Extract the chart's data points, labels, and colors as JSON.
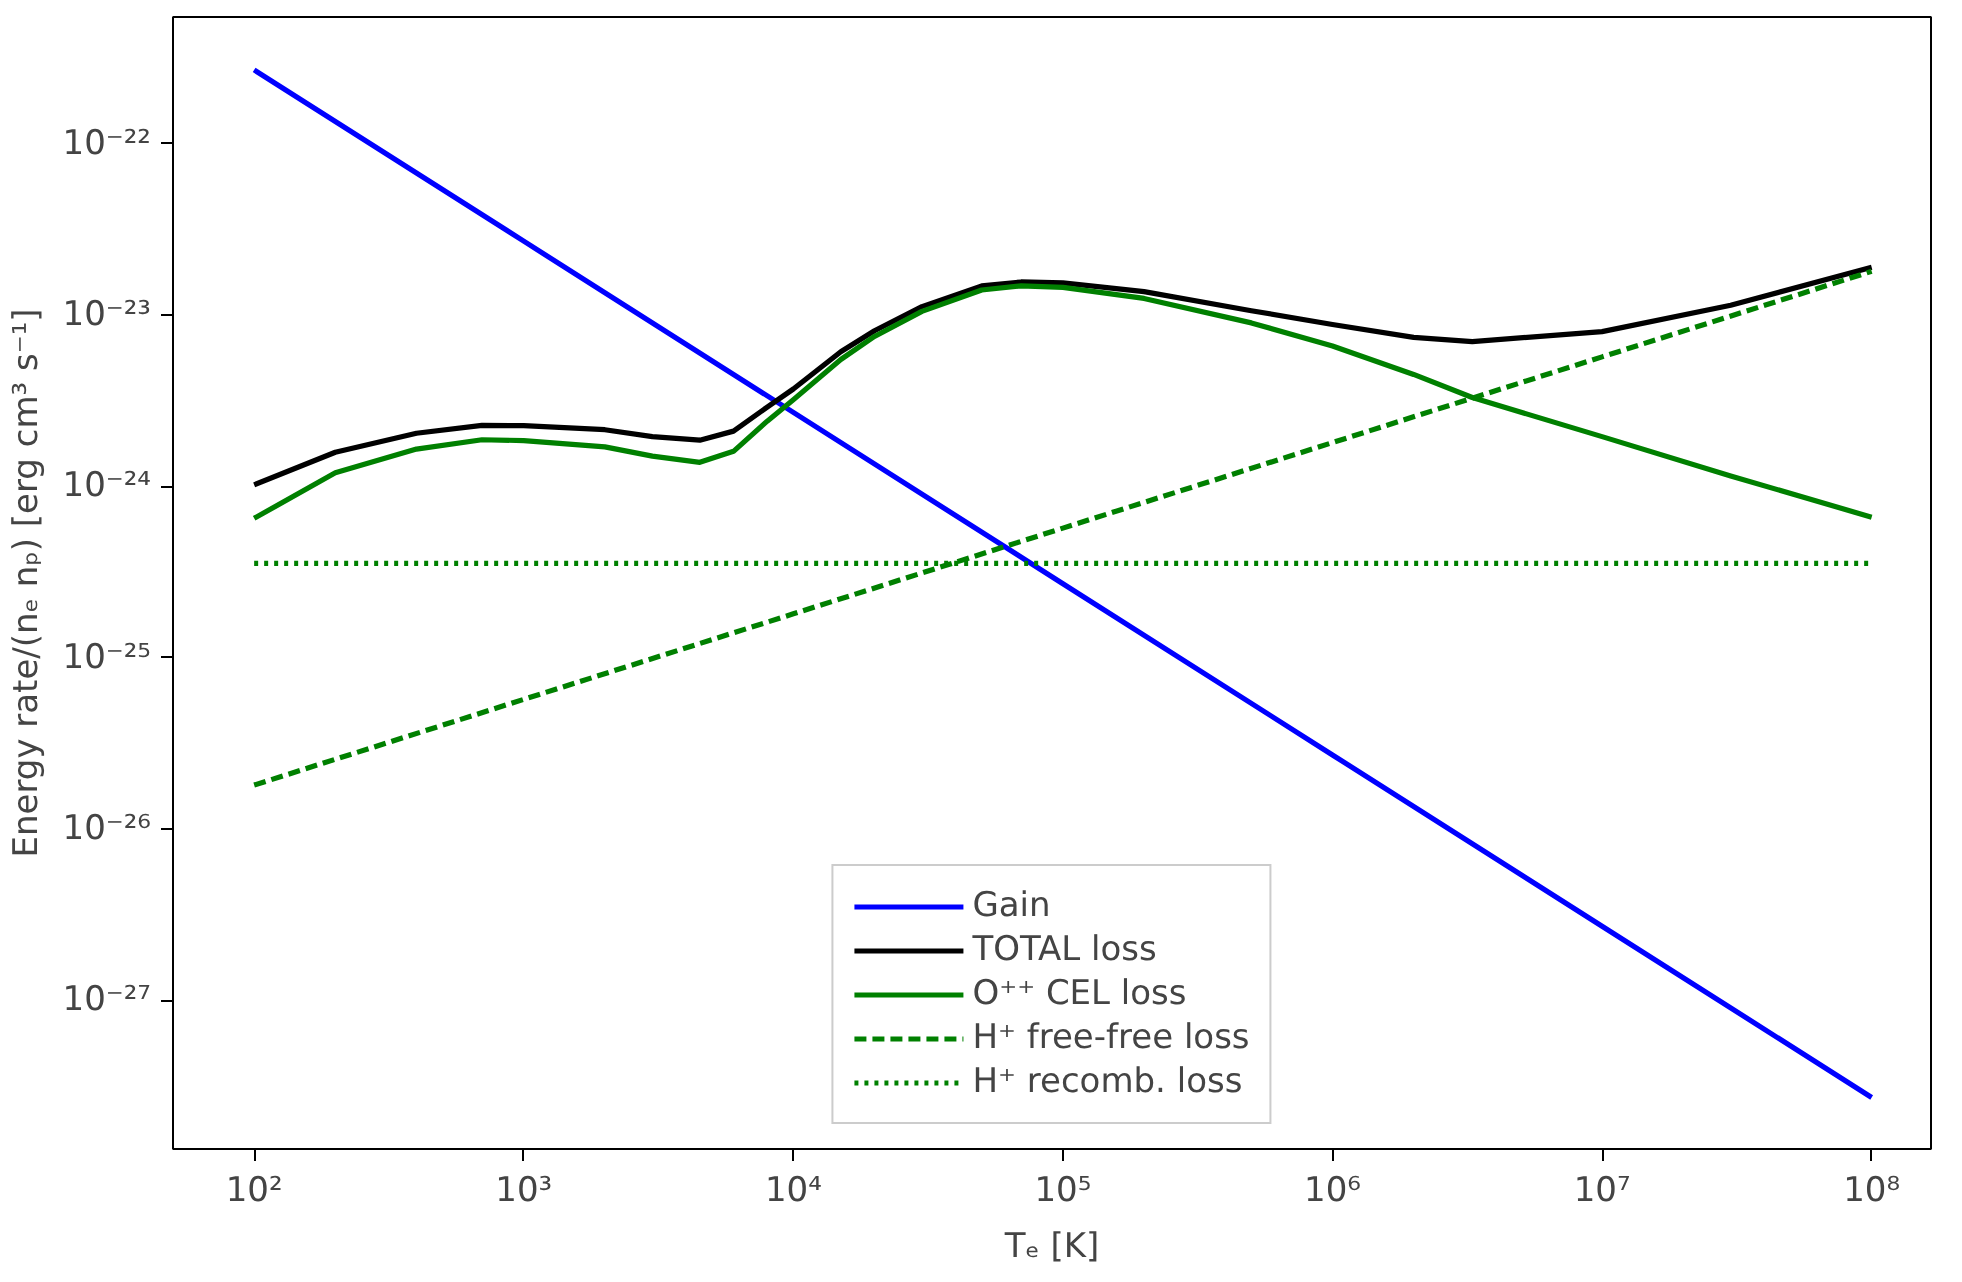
{
  "chart_data": {
    "type": "line",
    "xlabel": "Tₑ [K]",
    "ylabel": "Energy rate/(nₑ nₚ) [erg cm³ s⁻¹]",
    "log": "xy",
    "grid": false,
    "legend": "bottom",
    "line_style": "solid",
    "marker": "none",
    "xlim": [
      50,
      166000000
    ],
    "ylim": [
      1.35e-28,
      5.5e-22
    ],
    "xticks": [
      {
        "value": 100,
        "label": "10²"
      },
      {
        "value": 1000,
        "label": "10³"
      },
      {
        "value": 10000,
        "label": "10⁴"
      },
      {
        "value": 100000,
        "label": "10⁵"
      },
      {
        "value": 1000000,
        "label": "10⁶"
      },
      {
        "value": 10000000,
        "label": "10⁷"
      },
      {
        "value": 100000000,
        "label": "10⁸"
      }
    ],
    "yticks": [
      {
        "value": 1e-27,
        "label": "10⁻²⁷"
      },
      {
        "value": 1e-26,
        "label": "10⁻²⁶"
      },
      {
        "value": 1e-25,
        "label": "10⁻²⁵"
      },
      {
        "value": 1e-24,
        "label": "10⁻²⁴"
      },
      {
        "value": 1e-23,
        "label": "10⁻²³"
      },
      {
        "value": 1e-22,
        "label": "10⁻²²"
      }
    ],
    "x": [
      100,
      200,
      400,
      700,
      1000,
      2000,
      3000,
      4500,
      6000,
      8000,
      10000,
      15000,
      20000,
      30000,
      50000,
      70000,
      100000,
      200000,
      500000,
      1000000,
      2000000,
      3300000,
      10000000,
      30000000,
      100000000
    ],
    "series": [
      {
        "name": "Gain",
        "color": "#0000ff",
        "x": [
          100,
          1000,
          10000,
          100000,
          1000000,
          10000000,
          100000000
        ],
        "values": [
          2.7e-22,
          2.7e-23,
          2.7e-24,
          2.7e-25,
          2.7e-26,
          2.7e-27,
          2.7e-28
        ]
      },
      {
        "name": "TOTAL loss",
        "color": "#000000",
        "values": [
          1.02e-24,
          1.58e-24,
          2.04e-24,
          2.27e-24,
          2.26e-24,
          2.14e-24,
          1.95e-24,
          1.86e-24,
          2.1e-24,
          2.9e-24,
          3.7e-24,
          6.1e-24,
          8.1e-24,
          1.12e-23,
          1.48e-23,
          1.56e-23,
          1.54e-23,
          1.37e-23,
          1.06e-23,
          8.8e-24,
          7.4e-24,
          7e-24,
          8e-24,
          1.14e-23,
          1.9e-23
        ]
      },
      {
        "name": "O⁺⁺ CEL loss",
        "color": "#008000",
        "values": [
          6.5e-25,
          1.2e-24,
          1.65e-24,
          1.87e-24,
          1.85e-24,
          1.7e-24,
          1.5e-24,
          1.38e-24,
          1.6e-24,
          2.4e-24,
          3.2e-24,
          5.5e-24,
          7.5e-24,
          1.05e-23,
          1.4e-23,
          1.48e-23,
          1.45e-23,
          1.25e-23,
          9e-24,
          6.6e-24,
          4.5e-24,
          3.3e-24,
          1.95e-24,
          1.15e-24,
          6.6e-25
        ]
      },
      {
        "name": "H⁺ free-free loss",
        "color": "#008000",
        "line_style": "dashed",
        "x": [
          100,
          1000,
          10000,
          100000,
          1000000,
          10000000,
          100000000
        ],
        "values": [
          1.8e-26,
          5.7e-26,
          1.8e-25,
          5.7e-25,
          1.8e-24,
          5.7e-24,
          1.8e-23
        ]
      },
      {
        "name": "H⁺ recomb. loss",
        "color": "#008000",
        "line_style": "dotted",
        "x": [
          100,
          1000,
          10000,
          100000,
          1000000,
          10000000,
          100000000
        ],
        "values": [
          3.55e-25,
          3.55e-25,
          3.55e-25,
          3.55e-25,
          3.55e-25,
          3.55e-25,
          3.55e-25
        ]
      }
    ]
  }
}
